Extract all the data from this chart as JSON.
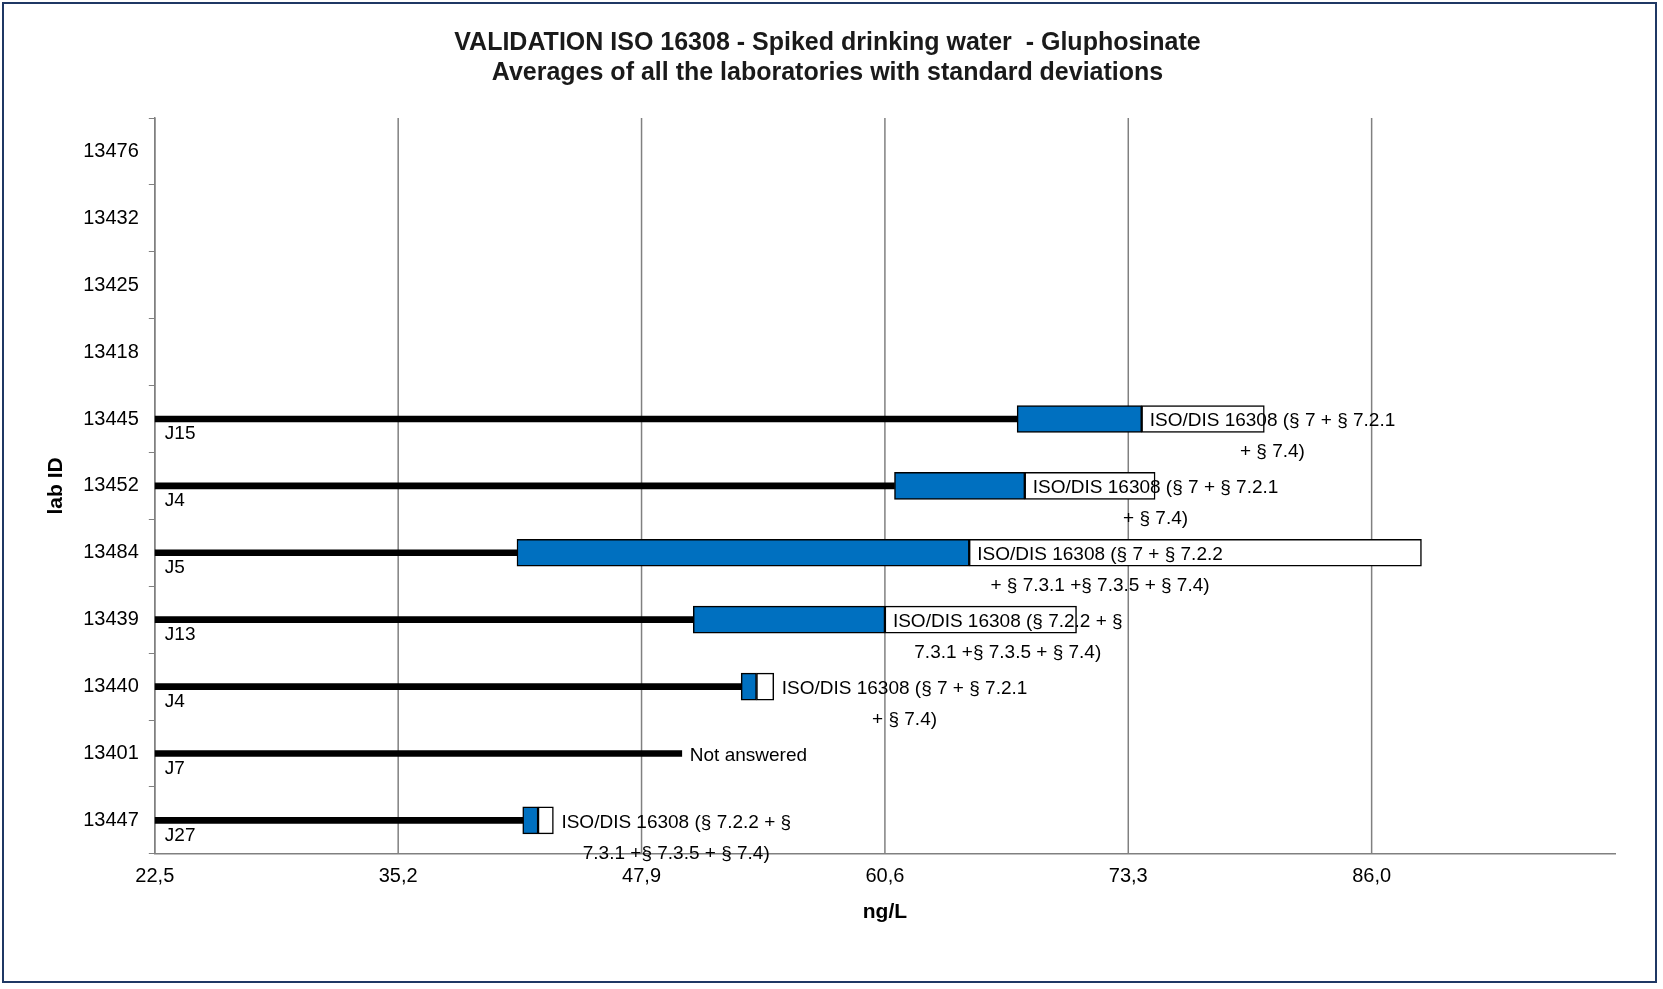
{
  "chart_data": {
    "type": "bar",
    "orientation": "horizontal",
    "title": "VALIDATION ISO 16308 - Spiked drinking water  - Gluphosinate",
    "subtitle": "Averages of all the laboratories with standard deviations",
    "xlabel": "ng/L",
    "ylabel": "lab ID",
    "categories": [
      "13476",
      "13432",
      "13425",
      "13418",
      "13445",
      "13452",
      "13484",
      "13439",
      "13440",
      "13401",
      "13447"
    ],
    "series": [
      {
        "color": "#000000",
        "values": [
          null,
          null,
          null,
          null,
          67.5,
          61.1,
          41.4,
          50.6,
          53.1,
          50.0,
          41.7
        ]
      },
      {
        "color": "#0070c0",
        "base": [
          null,
          null,
          null,
          null,
          67.5,
          61.1,
          41.4,
          50.6,
          53.1,
          null,
          41.7
        ],
        "values": [
          null,
          null,
          null,
          null,
          6.5,
          6.8,
          23.6,
          10.0,
          0.8,
          null,
          0.8
        ]
      },
      {
        "color": "#ffffff",
        "base": [
          null,
          null,
          null,
          null,
          74.0,
          67.9,
          65.0,
          60.6,
          53.9,
          null,
          42.5
        ],
        "values": [
          null,
          null,
          null,
          null,
          6.4,
          6.8,
          23.6,
          10.0,
          0.9,
          null,
          0.8
        ]
      }
    ],
    "xlim": [
      22.5,
      98.7
    ],
    "xticks": [
      {
        "value": 22.5,
        "label": "22,5"
      },
      {
        "value": 35.2,
        "label": "35,2"
      },
      {
        "value": 47.9,
        "label": "47,9"
      },
      {
        "value": 60.6,
        "label": "60,6"
      },
      {
        "value": 73.3,
        "label": "73,3"
      },
      {
        "value": 86.0,
        "label": "86,0"
      }
    ],
    "grid": "x",
    "legend": false,
    "annotations": [
      {
        "text": "J15",
        "x": 22.5,
        "y": "13445"
      },
      {
        "text": "J4",
        "x": 22.5,
        "y": "13452"
      },
      {
        "text": "J5",
        "x": 22.5,
        "y": "13484"
      },
      {
        "text": "J13",
        "x": 22.5,
        "y": "13439"
      },
      {
        "text": "J4",
        "x": 22.5,
        "y": "13440"
      },
      {
        "text": "J7",
        "x": 22.5,
        "y": "13401"
      },
      {
        "text": "J27",
        "x": 22.5,
        "y": "13447"
      },
      {
        "text": "ISO/DIS 16308 (§ 7 + § 7.2.1 + § 7.4)",
        "x": 74.0,
        "y": "13445"
      },
      {
        "text": "ISO/DIS 16308 (§ 7 + § 7.2.1 + § 7.4)",
        "x": 67.9,
        "y": "13452"
      },
      {
        "text": "ISO/DIS 16308 (§ 7 + § 7.2.2 + § 7.3.1 +§ 7.3.5 + § 7.4)",
        "x": 65.0,
        "y": "13484"
      },
      {
        "text": "ISO/DIS 16308 (§ 7.2.2 + § 7.3.1 +§ 7.3.5 + § 7.4)",
        "x": 60.6,
        "y": "13439"
      },
      {
        "text": "ISO/DIS 16308 (§ 7 + § 7.2.1 + § 7.4)",
        "x": 54.8,
        "y": "13440"
      },
      {
        "text": "Not answered",
        "x": 50.0,
        "y": "13401"
      },
      {
        "text": "ISO/DIS 16308 (§ 7.2.2 + § 7.3.1 +§ 7.3.5 + § 7.4)",
        "x": 43.3,
        "y": "13447"
      }
    ]
  }
}
